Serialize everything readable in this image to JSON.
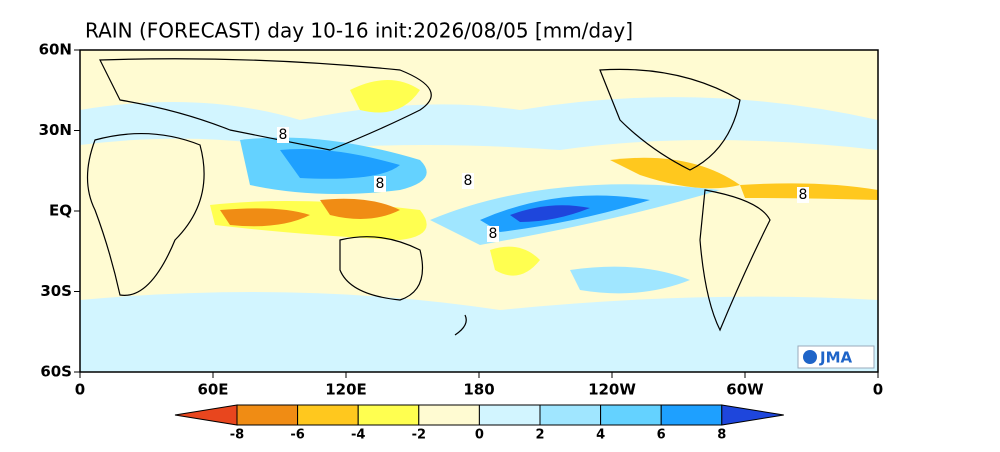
{
  "title": "RAIN (FORECAST) day 10-16 init:2026/08/05  [mm/day]",
  "map": {
    "lat_labels": [
      "60N",
      "30N",
      "EQ",
      "30S",
      "60S"
    ],
    "lon_labels": [
      "0",
      "60E",
      "120E",
      "180",
      "120W",
      "60W",
      "0"
    ],
    "contour_labels": [
      "8",
      "8",
      "8",
      "8",
      "8"
    ],
    "logo": "JMA"
  },
  "colorbar": {
    "ticks": [
      -8,
      -6,
      -4,
      -2,
      0,
      2,
      4,
      6,
      8
    ],
    "colors": [
      "#e8461e",
      "#f08c14",
      "#ffc81e",
      "#ffff50",
      "#fffbd2",
      "#d2f5ff",
      "#a0e6ff",
      "#64d2ff",
      "#1ea0ff",
      "#1e46dc"
    ]
  }
}
